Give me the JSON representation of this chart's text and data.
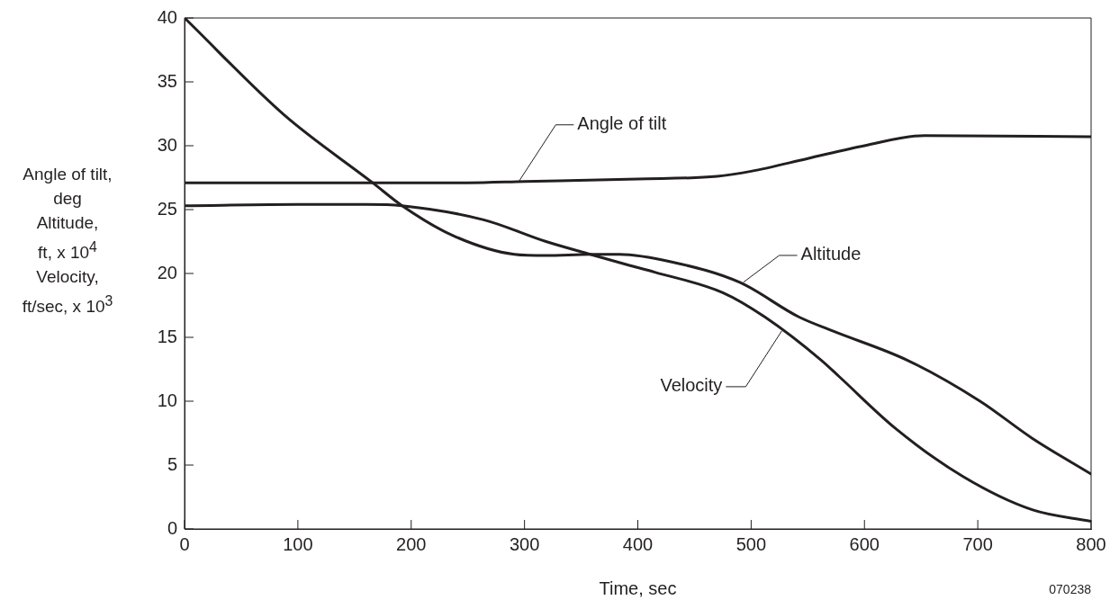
{
  "chart_data": {
    "type": "line",
    "xlabel": "Time, sec",
    "ylabel": "Angle of tilt,\ndeg\nAltitude,\nft, x 10$^{4}$\nVelocity,\nft/sec, x 10$^{3}$",
    "xlim": [
      0,
      800
    ],
    "xticks": [
      0,
      100,
      200,
      300,
      400,
      500,
      600,
      700,
      800
    ],
    "ylim": [
      0,
      40
    ],
    "yticks": [
      0,
      5,
      10,
      15,
      20,
      25,
      30,
      35,
      40
    ],
    "grid": false,
    "legend": false,
    "marker": "none",
    "line_style": "solid",
    "series": [
      {
        "color": "#231f20",
        "x": [
          0,
          250,
          300,
          400,
          470,
          500,
          550,
          600,
          653,
          800
        ],
        "values": [
          27.1,
          27.1,
          27.2,
          27.4,
          27.6,
          28.0,
          29.0,
          30.0,
          30.8,
          30.7
        ]
      },
      {
        "color": "#231f20",
        "x": [
          0,
          88,
          166,
          192,
          236,
          291,
          319,
          358,
          384,
          430,
          490,
          542,
          572,
          638,
          702,
          748,
          800
        ],
        "values": [
          40,
          32.4,
          27.1,
          25.3,
          23.0,
          21.5,
          21.4,
          21.5,
          21.5,
          20.9,
          19.3,
          16.6,
          15.5,
          13.2,
          10.0,
          7.1,
          4.3
        ]
      },
      {
        "color": "#231f20",
        "x": [
          0,
          100,
          160,
          192,
          264,
          319,
          358,
          394,
          415,
          475,
          512,
          562,
          578,
          627,
          687,
          748,
          800
        ],
        "values": [
          25.3,
          25.4,
          25.4,
          25.3,
          24.2,
          22.5,
          21.5,
          20.6,
          20.1,
          18.5,
          16.6,
          13.2,
          11.9,
          7.9,
          4.1,
          1.5,
          0.6
        ]
      }
    ],
    "annotations": [
      {
        "text": "Angle of tilt",
        "x": 295,
        "y": 27.2
      },
      {
        "text": "Altitude",
        "x": 493,
        "y": 19.3
      },
      {
        "text": "Velocity",
        "x": 527,
        "y": 15.5
      },
      "070238"
    ]
  }
}
